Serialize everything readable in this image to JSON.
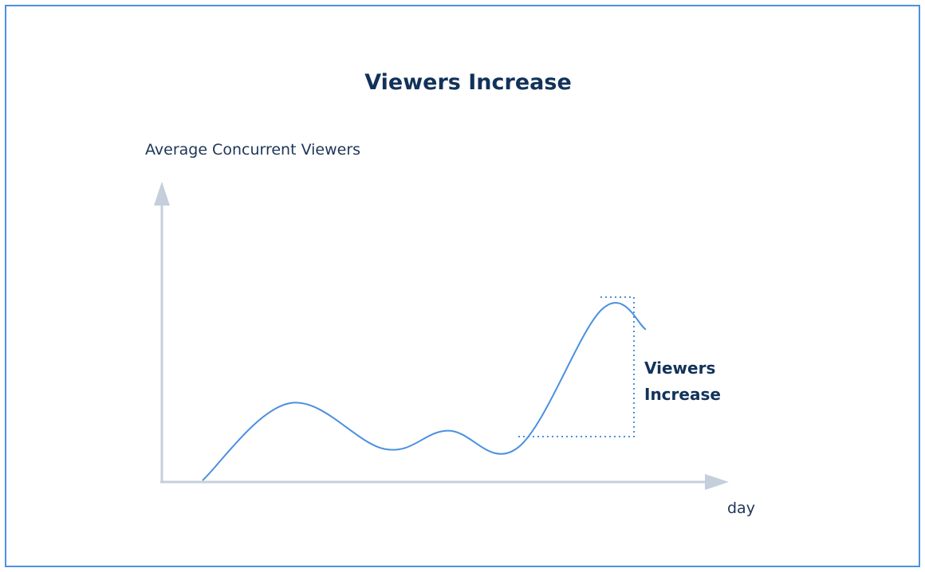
{
  "chart_data": {
    "type": "line",
    "title": "Viewers Increase",
    "ylabel": "Average Concurrent Viewers",
    "xlabel": "day",
    "annotation": [
      "Viewers",
      "Increase"
    ],
    "series": [
      {
        "values": [
          0.0,
          0.42,
          0.17,
          0.27,
          0.18,
          0.93,
          0.82
        ]
      }
    ],
    "colors": {
      "line": "#4a90e2",
      "axis": "#c5cfdb",
      "text": "#12325a"
    }
  }
}
